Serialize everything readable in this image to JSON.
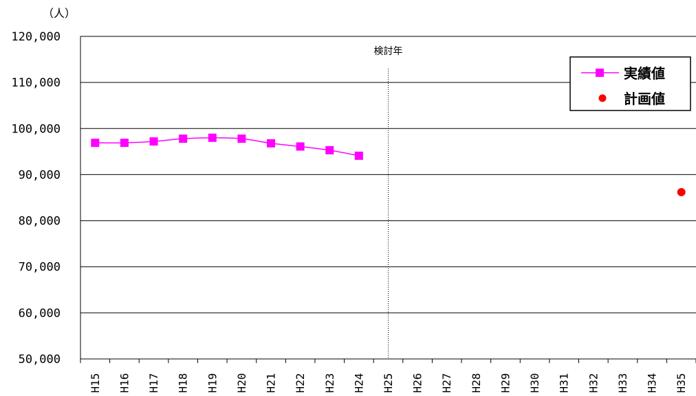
{
  "chart_data": {
    "type": "line",
    "unit_label": "（人）",
    "annotation": "検討年",
    "categories": [
      "H15",
      "H16",
      "H17",
      "H18",
      "H19",
      "H20",
      "H21",
      "H22",
      "H23",
      "H24",
      "H25",
      "H26",
      "H27",
      "H28",
      "H29",
      "H30",
      "H31",
      "H32",
      "H33",
      "H34",
      "H35"
    ],
    "ylim": [
      50000,
      120000
    ],
    "yticks": [
      50000,
      60000,
      70000,
      80000,
      90000,
      100000,
      110000,
      120000
    ],
    "ytick_labels": [
      "50,000",
      "60,000",
      "70,000",
      "80,000",
      "90,000",
      "100,000",
      "110,000",
      "120,000"
    ],
    "grid": true,
    "legend_position": "top-right",
    "reference_line_category": "H25",
    "series": [
      {
        "name": "実績値",
        "color": "#ff00ff",
        "marker": "square",
        "line": true,
        "points": [
          {
            "x": "H15",
            "y": 96900
          },
          {
            "x": "H16",
            "y": 96900
          },
          {
            "x": "H17",
            "y": 97200
          },
          {
            "x": "H18",
            "y": 97800
          },
          {
            "x": "H19",
            "y": 98000
          },
          {
            "x": "H20",
            "y": 97800
          },
          {
            "x": "H21",
            "y": 96800
          },
          {
            "x": "H22",
            "y": 96100
          },
          {
            "x": "H23",
            "y": 95300
          },
          {
            "x": "H24",
            "y": 94100
          }
        ]
      },
      {
        "name": "計画値",
        "color": "#ff0000",
        "marker": "circle",
        "line": false,
        "points": [
          {
            "x": "H35",
            "y": 86200
          }
        ]
      }
    ]
  }
}
